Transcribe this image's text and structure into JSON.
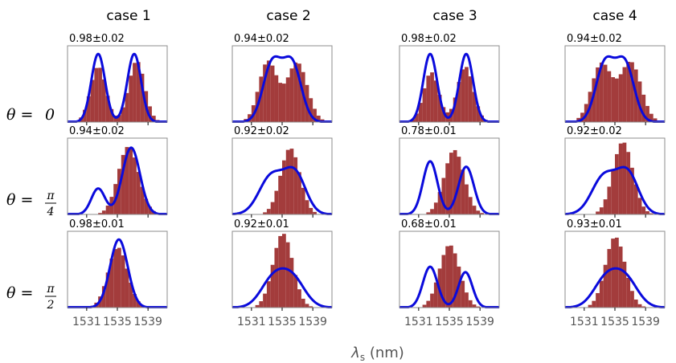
{
  "figure": {
    "xlabel": "λs (nm)",
    "xlabel_main": "λ",
    "xlabel_sub": "s",
    "xlabel_unit": " (nm)",
    "column_titles": [
      "case 1",
      "case 2",
      "case 3",
      "case 4"
    ],
    "row_labels": [
      {
        "lhs": "θ = ",
        "num": "0",
        "den": ""
      },
      {
        "lhs": "θ = ",
        "num": "π",
        "den": "4"
      },
      {
        "lhs": "θ = ",
        "num": "π",
        "den": "2"
      }
    ],
    "colors": {
      "histogram": "#a33c3c",
      "curve": "#0a0adc",
      "frame": "#8c8c8c",
      "tick_text": "#555555"
    }
  },
  "chart_data": {
    "type": "histogram+line",
    "x_ticks": [
      1531,
      1535,
      1539
    ],
    "xlim": [
      1528.5,
      1541.5
    ],
    "ylim": [
      0,
      1.12
    ],
    "panels": [
      {
        "row": 0,
        "col": 0,
        "annotation": "0.98±0.02",
        "hist": [
          {
            "mu": 1532.5,
            "sigma": 1.0,
            "w": 0.9
          },
          {
            "mu": 1537.5,
            "sigma": 1.05,
            "w": 0.85
          }
        ],
        "curve": [
          {
            "mu": 1532.5,
            "sigma": 0.9,
            "w": 1.0
          },
          {
            "mu": 1537.2,
            "sigma": 0.9,
            "w": 1.0
          }
        ]
      },
      {
        "row": 0,
        "col": 1,
        "annotation": "0.94±0.02",
        "hist": [
          {
            "mu": 1533.2,
            "sigma": 1.2,
            "w": 0.85
          },
          {
            "mu": 1537.0,
            "sigma": 1.3,
            "w": 0.95
          }
        ],
        "curve": [
          {
            "mu": 1533.7,
            "sigma": 1.2,
            "w": 0.85
          },
          {
            "mu": 1536.3,
            "sigma": 1.2,
            "w": 0.85
          }
        ]
      },
      {
        "row": 0,
        "col": 2,
        "annotation": "0.98±0.02",
        "hist": [
          {
            "mu": 1532.6,
            "sigma": 1.0,
            "w": 0.75
          },
          {
            "mu": 1537.1,
            "sigma": 1.05,
            "w": 0.75
          }
        ],
        "curve": [
          {
            "mu": 1532.5,
            "sigma": 0.9,
            "w": 1.0
          },
          {
            "mu": 1537.2,
            "sigma": 0.9,
            "w": 1.0
          }
        ]
      },
      {
        "row": 0,
        "col": 3,
        "annotation": "0.94±0.02",
        "hist": [
          {
            "mu": 1533.3,
            "sigma": 1.3,
            "w": 0.9
          },
          {
            "mu": 1537.0,
            "sigma": 1.35,
            "w": 0.95
          }
        ],
        "curve": [
          {
            "mu": 1533.7,
            "sigma": 1.2,
            "w": 0.85
          },
          {
            "mu": 1536.3,
            "sigma": 1.2,
            "w": 0.85
          }
        ]
      },
      {
        "row": 1,
        "col": 0,
        "annotation": "0.94±0.02",
        "hist": [
          {
            "mu": 1536.5,
            "sigma": 1.35,
            "w": 0.95
          }
        ],
        "curve": [
          {
            "mu": 1532.5,
            "sigma": 0.9,
            "w": 0.38
          },
          {
            "mu": 1536.8,
            "sigma": 1.15,
            "w": 0.98
          }
        ]
      },
      {
        "row": 1,
        "col": 1,
        "annotation": "0.92±0.02",
        "hist": [
          {
            "mu": 1536.0,
            "sigma": 1.25,
            "w": 1.0
          }
        ],
        "curve": [
          {
            "mu": 1533.6,
            "sigma": 1.6,
            "w": 0.56
          },
          {
            "mu": 1536.7,
            "sigma": 1.4,
            "w": 0.58
          }
        ]
      },
      {
        "row": 1,
        "col": 2,
        "annotation": "0.78±0.01",
        "hist": [
          {
            "mu": 1535.7,
            "sigma": 1.3,
            "w": 0.96
          }
        ],
        "curve": [
          {
            "mu": 1532.5,
            "sigma": 0.95,
            "w": 0.78
          },
          {
            "mu": 1537.2,
            "sigma": 1.0,
            "w": 0.7
          }
        ]
      },
      {
        "row": 1,
        "col": 3,
        "annotation": "0.92±0.02",
        "hist": [
          {
            "mu": 1536.0,
            "sigma": 1.3,
            "w": 1.0
          }
        ],
        "curve": [
          {
            "mu": 1533.6,
            "sigma": 1.6,
            "w": 0.56
          },
          {
            "mu": 1536.7,
            "sigma": 1.4,
            "w": 0.58
          }
        ]
      },
      {
        "row": 2,
        "col": 0,
        "annotation": "0.98±0.01",
        "hist": [
          {
            "mu": 1535.1,
            "sigma": 1.25,
            "w": 0.96
          }
        ],
        "curve": [
          {
            "mu": 1535.2,
            "sigma": 1.15,
            "w": 1.0
          }
        ]
      },
      {
        "row": 2,
        "col": 1,
        "annotation": "0.92±0.01",
        "hist": [
          {
            "mu": 1535.1,
            "sigma": 1.3,
            "w": 1.0
          }
        ],
        "curve": [
          {
            "mu": 1533.8,
            "sigma": 1.6,
            "w": 0.4
          },
          {
            "mu": 1536.4,
            "sigma": 1.6,
            "w": 0.4
          }
        ]
      },
      {
        "row": 2,
        "col": 2,
        "annotation": "0.68±0.01",
        "hist": [
          {
            "mu": 1535.0,
            "sigma": 1.3,
            "w": 1.0
          }
        ],
        "curve": [
          {
            "mu": 1532.5,
            "sigma": 0.95,
            "w": 0.6
          },
          {
            "mu": 1537.1,
            "sigma": 0.9,
            "w": 0.52
          }
        ]
      },
      {
        "row": 2,
        "col": 3,
        "annotation": "0.93±0.01",
        "hist": [
          {
            "mu": 1535.1,
            "sigma": 1.3,
            "w": 1.0
          }
        ],
        "curve": [
          {
            "mu": 1533.8,
            "sigma": 1.6,
            "w": 0.4
          },
          {
            "mu": 1536.4,
            "sigma": 1.6,
            "w": 0.4
          }
        ]
      }
    ]
  }
}
